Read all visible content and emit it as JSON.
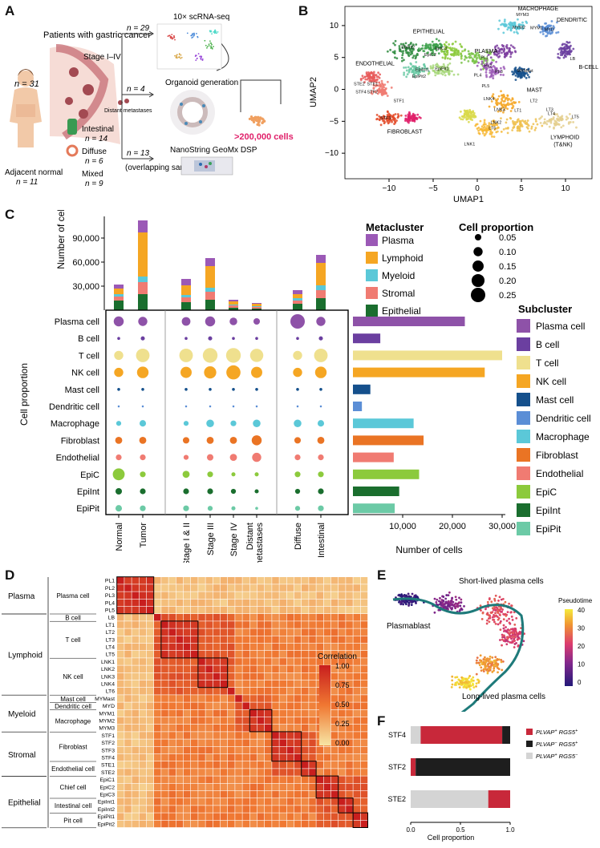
{
  "panel_labels": [
    "A",
    "B",
    "C",
    "D",
    "E",
    "F"
  ],
  "panelA": {
    "patients_title": "Patients with gastric cancer",
    "n_total": "n = 31",
    "adjacent_normal": "Adjacent normal",
    "adjacent_n": "n = 11",
    "stage": "Stage I–IV",
    "distant_metastases": "Distant metastases",
    "intestinal": "Intestinal",
    "intestinal_n": "n = 14",
    "diffuse": "Diffuse",
    "diffuse_n": "n = 6",
    "mixed": "Mixed",
    "mixed_n": "n = 9",
    "arrow1_n": "n = 29",
    "arrow2_n": "n = 4",
    "arrow3_n": "n = 13",
    "scrna": "10× scRNA-seq",
    "organoid": "Organoid generation",
    "cells": ">200,000 cells",
    "nanostring": "NanoString GeoMx DSP",
    "overlapping": "(overlapping samples)"
  },
  "panelB": {
    "xlabel": "UMAP1",
    "ylabel": "UMAP2",
    "xticks": [
      "−10",
      "−5",
      "0",
      "5",
      "10"
    ],
    "yticks": [
      "10",
      "5",
      "0",
      "−5",
      "−10"
    ],
    "group_labels": [
      "EPITHELIAL",
      "PLASMA",
      "MACROPHAGE",
      "DENDRITIC",
      "B-CELL",
      "ENDOTHELIAL",
      "MAST",
      "FIBROBLAST",
      "LYMPHOID (T&NK)"
    ],
    "cluster_labels": [
      "EpiInt2",
      "EpiC3",
      "EpiC2",
      "EpiInt1",
      "EpiPit2",
      "EpiPit1",
      "STE2",
      "STE1",
      "STF4",
      "STF2",
      "STF1",
      "STF3",
      "PL1",
      "PL2",
      "PL3",
      "PL4",
      "PL5",
      "MYMast",
      "MYM3",
      "MYM2",
      "MYM1",
      "MYD",
      "LB",
      "LT1",
      "LT2",
      "LT3",
      "LT4",
      "LT5",
      "LT6",
      "LNK1",
      "LNK2",
      "LNK3",
      "LNK4"
    ]
  },
  "panelC": {
    "bar_ylabel": "Number of cells",
    "bar_yticks": [
      "90,000",
      "60,000",
      "30,000"
    ],
    "metacluster_title": "Metacluster",
    "metaclusters": [
      {
        "name": "Plasma",
        "color": "#9b59b6"
      },
      {
        "name": "Lymphoid",
        "color": "#f5a623"
      },
      {
        "name": "Myeloid",
        "color": "#5bc8d8"
      },
      {
        "name": "Stromal",
        "color": "#f07b72"
      },
      {
        "name": "Epithelial",
        "color": "#1a6e2e"
      }
    ],
    "proportion_title": "Cell proportion",
    "proportion_sizes": [
      "0.05",
      "0.10",
      "0.15",
      "0.20",
      "0.25"
    ],
    "dot_ylabel": "Cell proportion",
    "cell_types": [
      "Plasma cell",
      "B cell",
      "T cell",
      "NK cell",
      "Mast cell",
      "Dendritic cell",
      "Macrophage",
      "Fibroblast",
      "Endothelial",
      "EpiC",
      "EpiInt",
      "EpiPit"
    ],
    "conditions": [
      "Normal",
      "Tumor",
      "Stage I & II",
      "Stage III",
      "Stage IV",
      "Distant metastases",
      "Diffuse",
      "Intestinal"
    ],
    "hbar_xlabel": "Number of cells",
    "hbar_xticks": [
      "10,000",
      "20,000",
      "30,000"
    ],
    "subcluster_title": "Subcluster",
    "subclusters": [
      {
        "name": "Plasma cell",
        "color": "#8e52a8"
      },
      {
        "name": "B cell",
        "color": "#6b3fa0"
      },
      {
        "name": "T cell",
        "color": "#efe08e"
      },
      {
        "name": "NK cell",
        "color": "#f5a623"
      },
      {
        "name": "Mast cell",
        "color": "#15508c"
      },
      {
        "name": "Dendritic cell",
        "color": "#5b8ed6"
      },
      {
        "name": "Macrophage",
        "color": "#5bc8d8"
      },
      {
        "name": "Fibroblast",
        "color": "#ea7424"
      },
      {
        "name": "Endothelial",
        "color": "#f07b72"
      },
      {
        "name": "EpiC",
        "color": "#8cca3c"
      },
      {
        "name": "EpiInt",
        "color": "#1a6e2e"
      },
      {
        "name": "EpiPit",
        "color": "#6ccaa6"
      }
    ]
  },
  "chart_data": [
    {
      "type": "bar",
      "title": "Number of cells per condition (stacked by metacluster)",
      "ylabel": "Number of cells",
      "ylim": [
        0,
        110000
      ],
      "categories": [
        "Normal",
        "Tumor",
        "Stage I & II",
        "Stage III",
        "Stage IV",
        "Distant metastases",
        "Diffuse",
        "Intestinal"
      ],
      "series": [
        {
          "name": "Epithelial",
          "values": [
            12000,
            20000,
            10000,
            13000,
            3000,
            2000,
            8000,
            15000
          ]
        },
        {
          "name": "Stromal",
          "values": [
            5000,
            15000,
            6000,
            10000,
            3000,
            2000,
            4000,
            10000
          ]
        },
        {
          "name": "Myeloid",
          "values": [
            3000,
            7000,
            3000,
            5000,
            1000,
            1000,
            3000,
            6000
          ]
        },
        {
          "name": "Lymphoid",
          "values": [
            7000,
            55000,
            12000,
            27000,
            4000,
            3000,
            5000,
            28000
          ]
        },
        {
          "name": "Plasma",
          "values": [
            5000,
            15000,
            8000,
            10000,
            2000,
            1000,
            5000,
            10000
          ]
        }
      ]
    },
    {
      "type": "scatter",
      "title": "Cell proportion by condition",
      "categories": [
        "Normal",
        "Tumor",
        "Stage I & II",
        "Stage III",
        "Stage IV",
        "Distant metastases",
        "Diffuse",
        "Intestinal"
      ],
      "rows": [
        "Plasma cell",
        "B cell",
        "T cell",
        "NK cell",
        "Mast cell",
        "Dendritic cell",
        "Macrophage",
        "Fibroblast",
        "Endothelial",
        "EpiC",
        "EpiInt",
        "EpiPit"
      ],
      "values": [
        [
          0.12,
          0.1,
          0.09,
          0.12,
          0.07,
          0.05,
          0.25,
          0.1
        ],
        [
          0.01,
          0.02,
          0.01,
          0.02,
          0.01,
          0.01,
          0.01,
          0.02
        ],
        [
          0.1,
          0.22,
          0.22,
          0.26,
          0.26,
          0.21,
          0.1,
          0.22
        ],
        [
          0.1,
          0.16,
          0.15,
          0.18,
          0.24,
          0.15,
          0.1,
          0.16
        ],
        [
          0.01,
          0.01,
          0.01,
          0.01,
          0.01,
          0.01,
          0.01,
          0.01
        ],
        [
          0.005,
          0.005,
          0.005,
          0.005,
          0.005,
          0.005,
          0.005,
          0.005
        ],
        [
          0.03,
          0.05,
          0.03,
          0.07,
          0.04,
          0.07,
          0.07,
          0.05
        ],
        [
          0.06,
          0.06,
          0.05,
          0.06,
          0.06,
          0.12,
          0.05,
          0.06
        ],
        [
          0.04,
          0.04,
          0.03,
          0.05,
          0.06,
          0.1,
          0.04,
          0.04
        ],
        [
          0.17,
          0.04,
          0.06,
          0.04,
          0.02,
          0.02,
          0.04,
          0.04
        ],
        [
          0.05,
          0.04,
          0.04,
          0.04,
          0.03,
          0.02,
          0.03,
          0.04
        ],
        [
          0.05,
          0.04,
          0.04,
          0.03,
          0.02,
          0.01,
          0.03,
          0.04
        ]
      ]
    },
    {
      "type": "bar",
      "orientation": "horizontal",
      "title": "Number of cells per subcluster",
      "xlabel": "Number of cells",
      "xlim": [
        0,
        30000
      ],
      "categories": [
        "Plasma cell",
        "B cell",
        "T cell",
        "NK cell",
        "Mast cell",
        "Dendritic cell",
        "Macrophage",
        "Fibroblast",
        "Endothelial",
        "EpiC",
        "EpiInt",
        "EpiPit"
      ],
      "values": [
        22500,
        5500,
        30000,
        26500,
        3500,
        1800,
        12200,
        14200,
        8200,
        13300,
        9300,
        8400
      ]
    },
    {
      "type": "heatmap",
      "title": "Correlation",
      "labels": [
        "PL1",
        "PL2",
        "PL3",
        "PL4",
        "PL5",
        "LB",
        "LT1",
        "LT2",
        "LT3",
        "LT4",
        "LT5",
        "LNK1",
        "LNK2",
        "LNK3",
        "LNK4",
        "LT6",
        "MYMast",
        "MYD",
        "MYM1",
        "MYM2",
        "MYM3",
        "STF1",
        "STF2",
        "STF3",
        "STF4",
        "STE1",
        "STE2",
        "EpiC1",
        "EpiC2",
        "EpiC3",
        "EpiInt1",
        "EpiInt2",
        "EpiPit1",
        "EpiPit2"
      ],
      "scale_ticks": [
        "1.00",
        "0.75",
        "0.50",
        "0.25",
        "0.00"
      ],
      "range": [
        0,
        1
      ]
    },
    {
      "type": "bar",
      "orientation": "horizontal",
      "stacked": true,
      "title": "Cell proportion",
      "xlabel": "Cell proportion",
      "xlim": [
        0,
        1
      ],
      "categories": [
        "STF4",
        "STF2",
        "STE2"
      ],
      "series": [
        {
          "name": "PLVAP+ RGS5+",
          "values": [
            0.82,
            0.05,
            0.22
          ]
        },
        {
          "name": "PLVAP− RGS5+",
          "values": [
            0.08,
            0.95,
            0.0
          ]
        },
        {
          "name": "PLVAP+ RGS5−",
          "values": [
            0.1,
            0.0,
            0.78
          ]
        }
      ]
    }
  ],
  "panelD": {
    "corr_title": "Correlation",
    "corr_ticks": [
      "1.00",
      "0.75",
      "0.50",
      "0.25",
      "0.00"
    ],
    "meta_groups": [
      "Plasma",
      "Lymphoid",
      "Myeloid",
      "Stromal",
      "Epithelial"
    ],
    "sub_groups": [
      "Plasma cell",
      "B cell",
      "T cell",
      "NK cell",
      "Mast cell",
      "Dendritic cell",
      "Macrophage",
      "Fibroblast",
      "Endothelial cell",
      "Chief cell",
      "Intestinal cell",
      "Pit cell"
    ]
  },
  "panelE": {
    "short_lived": "Short-lived plasma cells",
    "plasmablast": "Plasmablast",
    "long_lived": "Long-lived plasma cells",
    "pseudotime": "Pseudotime",
    "ticks": [
      "40",
      "30",
      "20",
      "10",
      "0"
    ]
  },
  "panelF": {
    "xlabel": "Cell proportion",
    "xticks": [
      "0.0",
      "0.5",
      "1.0"
    ],
    "legend_sup": [
      [
        "PLVAP",
        "+",
        " RGS5",
        "+"
      ],
      [
        "PLVAP",
        "−",
        " RGS5",
        "+"
      ],
      [
        "PLVAP",
        "+",
        " RGS5",
        "−"
      ]
    ],
    "colors": [
      "#c8283a",
      "#1e1e1e",
      "#d4d4d4"
    ]
  }
}
